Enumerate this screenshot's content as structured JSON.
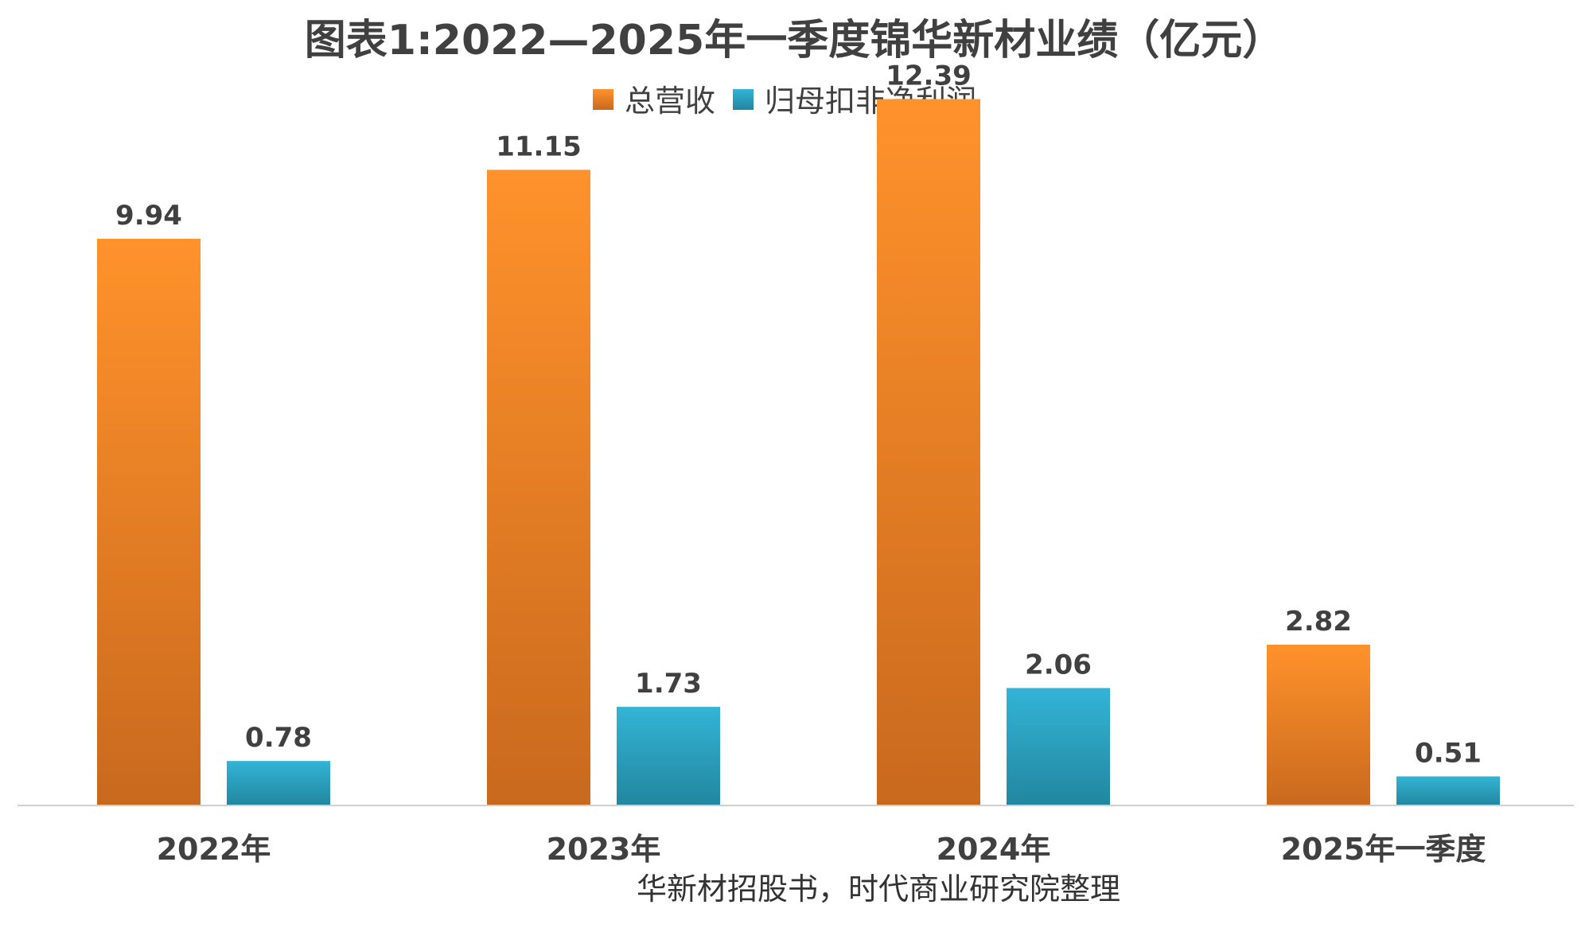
{
  "chart_data": {
    "type": "bar",
    "title": "图表1:2022—2025年一季度锦华新材业绩（亿元）",
    "categories": [
      "2022年",
      "2023年",
      "2024年",
      "2025年一季度"
    ],
    "series": [
      {
        "name": "总营收",
        "values": [
          9.94,
          11.15,
          12.39,
          2.82
        ],
        "color": "#F28E2B"
      },
      {
        "name": "归母扣非净利润",
        "values": [
          0.78,
          1.73,
          2.06,
          0.51
        ],
        "color": "#2AA7C9"
      }
    ],
    "legend_position": "top-center",
    "grid": false,
    "ylim": [
      0,
      13
    ]
  },
  "source": "华新材招股书，时代商业研究院整理"
}
